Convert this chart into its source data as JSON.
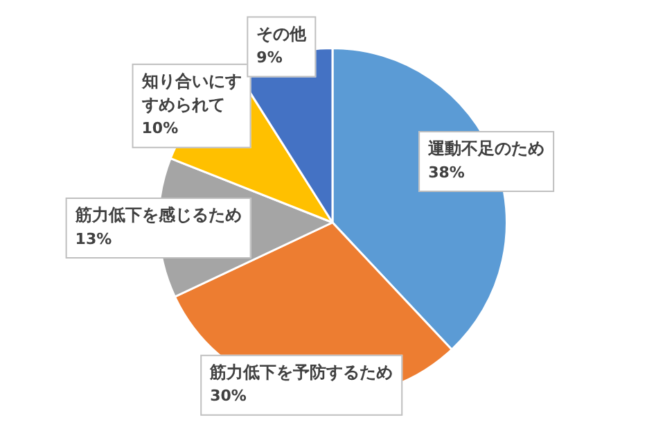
{
  "chart_data": {
    "type": "pie",
    "categories": [
      "運動不足のため",
      "筋力低下を予防するため",
      "筋力低下を感じるため",
      "知り合いにすすめられて",
      "その他"
    ],
    "values": [
      38,
      30,
      13,
      10,
      9
    ],
    "value_labels": [
      "38%",
      "30%",
      "13%",
      "10%",
      "9%"
    ],
    "colors": [
      "#5b9bd5",
      "#ed7d31",
      "#a5a5a5",
      "#ffc000",
      "#4472c4"
    ],
    "legend": false
  }
}
